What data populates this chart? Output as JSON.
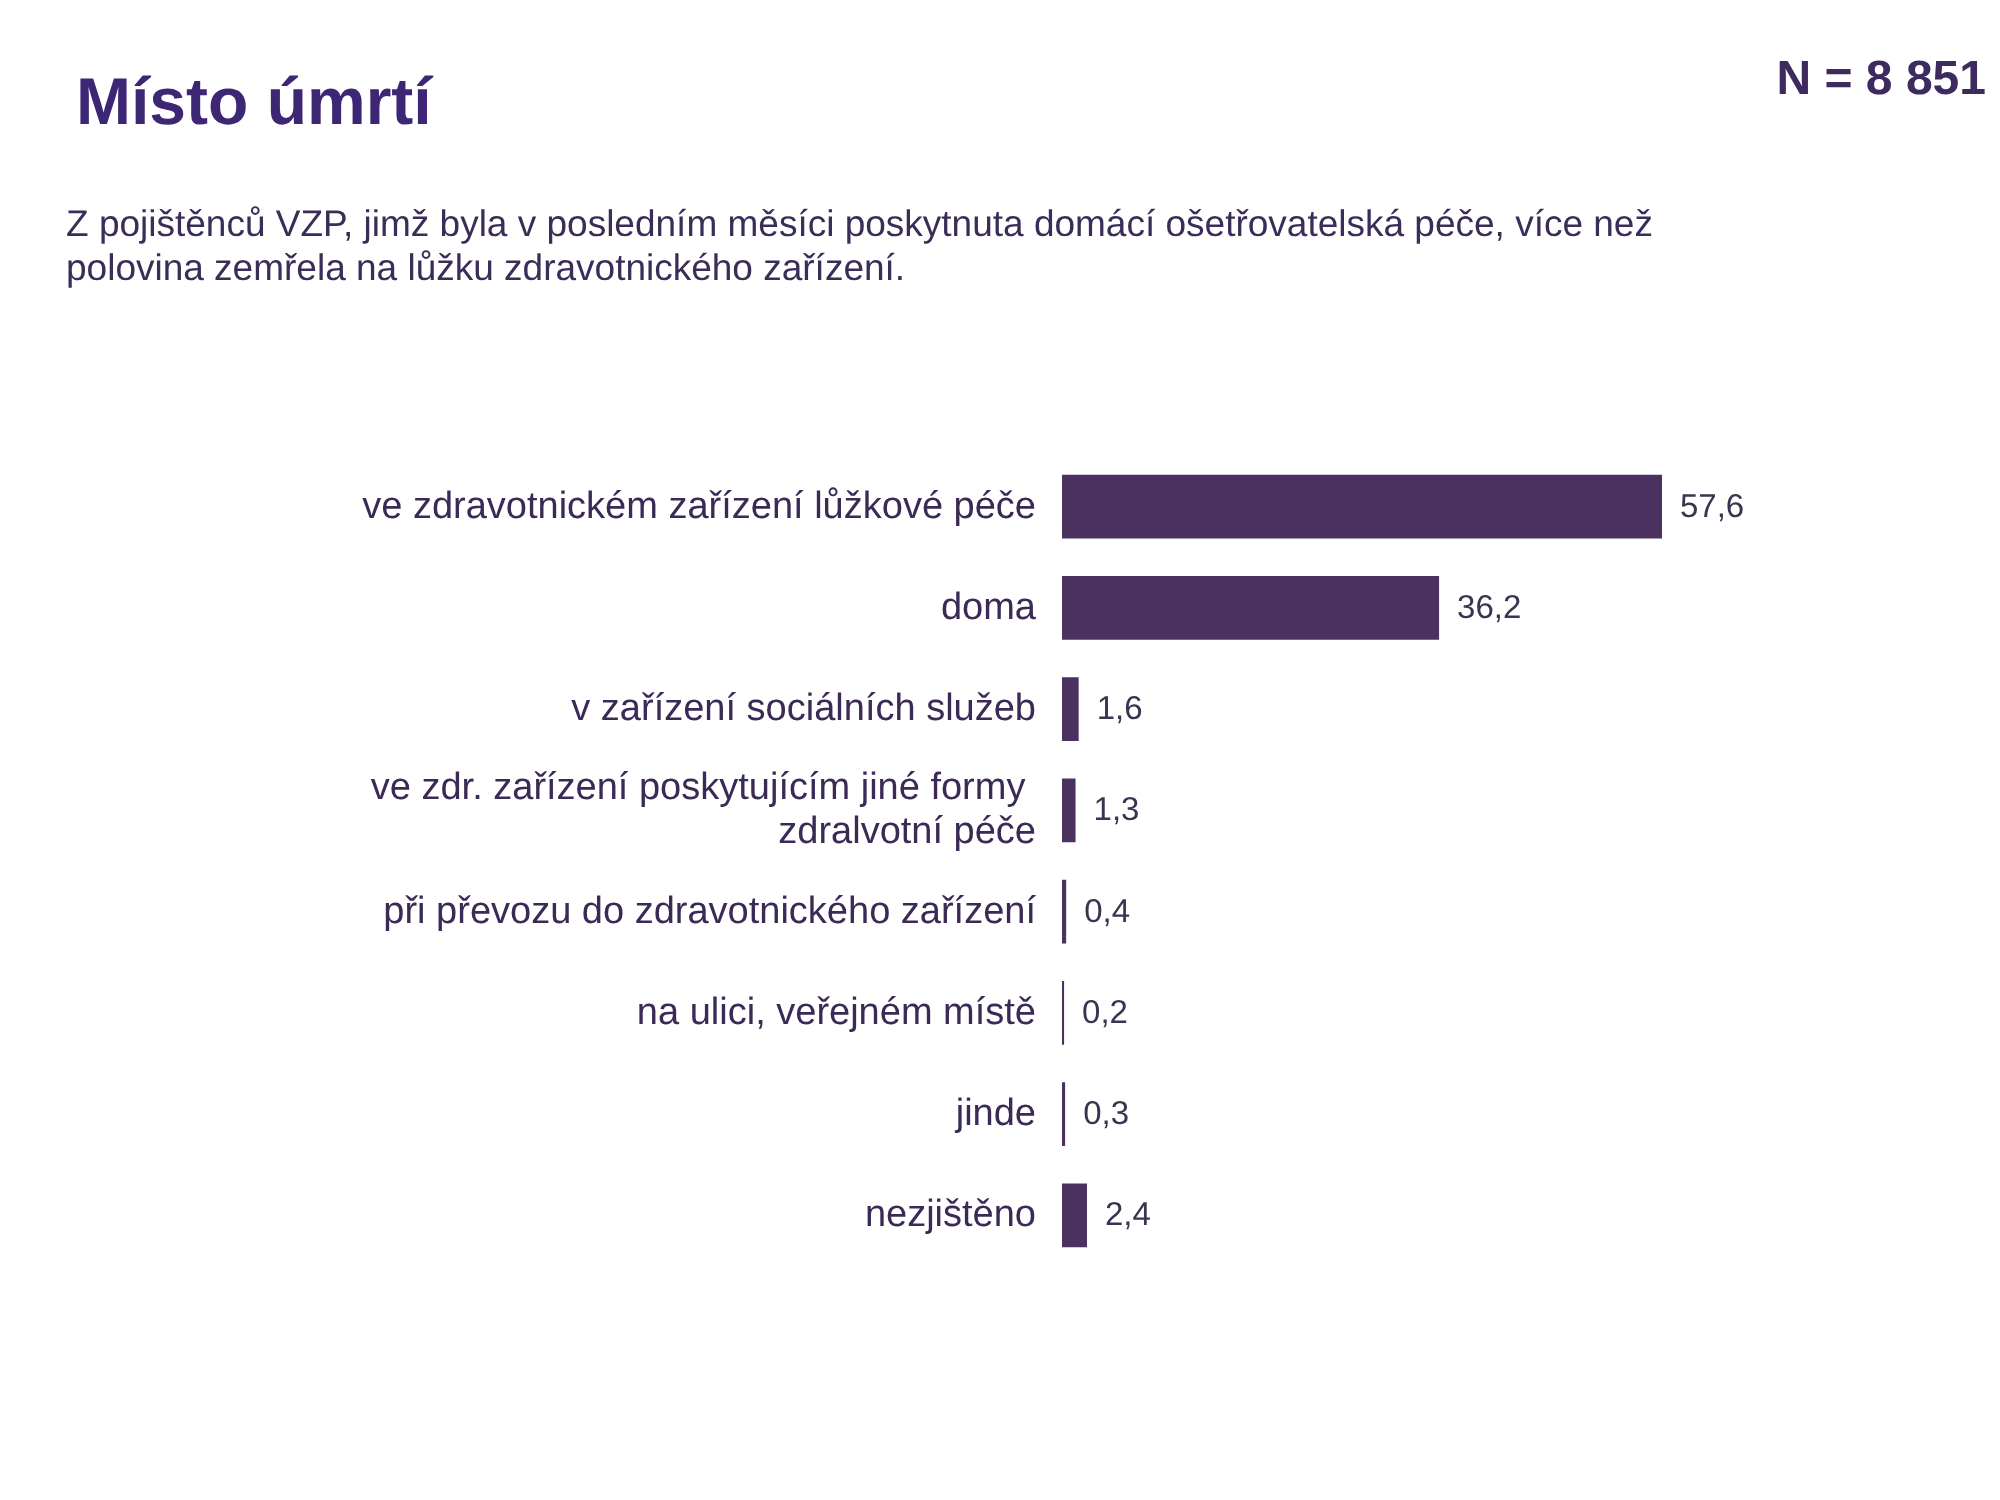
{
  "chart_data": {
    "type": "bar",
    "orientation": "horizontal",
    "title": "Místo úmrtí",
    "subtitle": "Z pojištěnců VZP, jimž byla v posledním měsíci poskytnuta domácí ošetřovatelská péče, více než polovina zemřela na lůžku zdravotnického zařízení.",
    "annotations": [
      "N = 8 851"
    ],
    "categories": [
      "ve zdravotnickém zařízení lůžkové péče",
      "doma",
      "v zařízení sociálních služeb",
      "ve zdr. zařízení poskytujícím jiné formy zdralvotní péče",
      "při převozu do zdravotnického zařízení",
      "na ulici, veřejném místě",
      "jinde",
      "nezjištěno"
    ],
    "values": [
      57.6,
      36.2,
      1.6,
      1.3,
      0.4,
      0.2,
      0.3,
      2.4
    ],
    "value_labels": [
      "57,6",
      "36,2",
      "1,6",
      "1,3",
      "0,4",
      "0,2",
      "0,3",
      "2,4"
    ],
    "color": "#4b3160"
  }
}
